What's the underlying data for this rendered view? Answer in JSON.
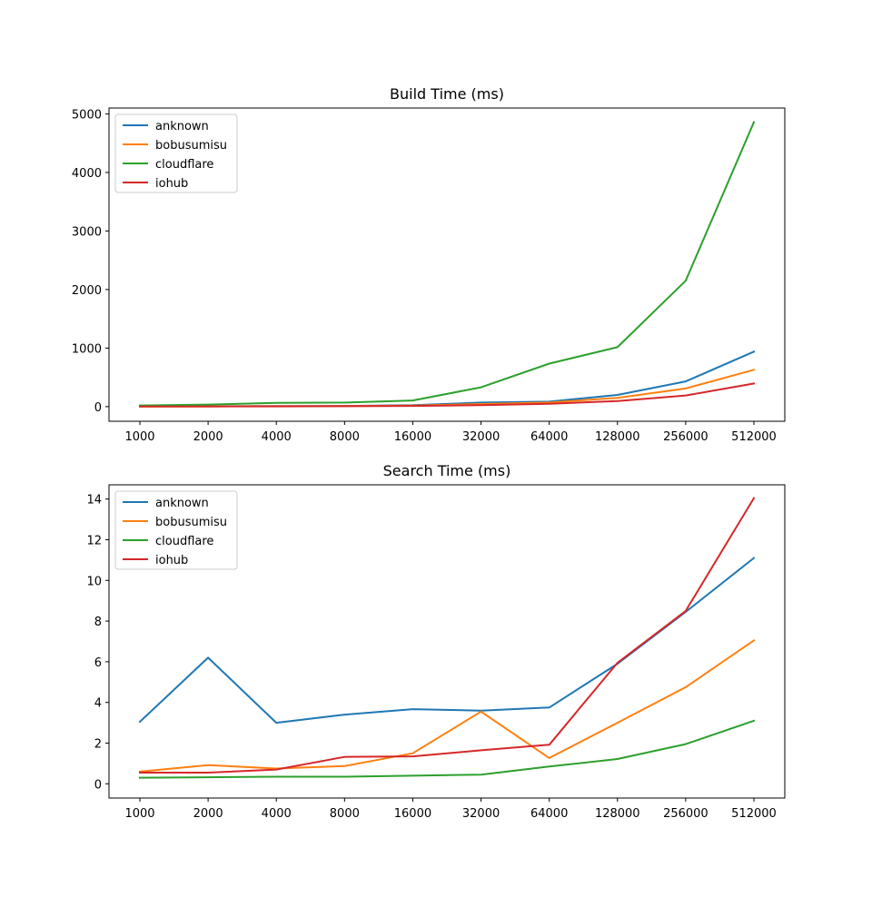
{
  "colors": {
    "anknown": "#1f77b4",
    "bobusumisu": "#ff7f0e",
    "cloudflare": "#2ca02c",
    "iohub": "#d62728"
  },
  "chart_data": [
    {
      "type": "line",
      "title": "Build Time (ms)",
      "xlabel": "",
      "ylabel": "",
      "categories": [
        "1000",
        "2000",
        "4000",
        "8000",
        "16000",
        "32000",
        "64000",
        "128000",
        "256000",
        "512000"
      ],
      "yticks": [
        0,
        1000,
        2000,
        3000,
        4000,
        5000
      ],
      "ylim": [
        -250,
        5100
      ],
      "legend": "top-left",
      "series": [
        {
          "name": "anknown",
          "values": [
            5,
            7,
            9,
            12,
            25,
            70,
            85,
            200,
            430,
            940
          ]
        },
        {
          "name": "bobusumisu",
          "values": [
            3,
            5,
            7,
            10,
            18,
            45,
            70,
            150,
            310,
            630
          ]
        },
        {
          "name": "cloudflare",
          "values": [
            20,
            35,
            65,
            70,
            105,
            330,
            735,
            1015,
            2150,
            4860
          ]
        },
        {
          "name": "iohub",
          "values": [
            2,
            3,
            5,
            8,
            12,
            25,
            50,
            95,
            190,
            395
          ]
        }
      ]
    },
    {
      "type": "line",
      "title": "Search Time (ms)",
      "xlabel": "",
      "ylabel": "",
      "categories": [
        "1000",
        "2000",
        "4000",
        "8000",
        "16000",
        "32000",
        "64000",
        "128000",
        "256000",
        "512000"
      ],
      "yticks": [
        0,
        2,
        4,
        6,
        8,
        10,
        12,
        14
      ],
      "ylim": [
        -0.7,
        14.7
      ],
      "legend": "top-left",
      "series": [
        {
          "name": "anknown",
          "values": [
            3.05,
            6.2,
            3.0,
            3.4,
            3.67,
            3.6,
            3.75,
            5.9,
            8.45,
            11.1
          ]
        },
        {
          "name": "bobusumisu",
          "values": [
            0.6,
            0.92,
            0.75,
            0.87,
            1.5,
            3.55,
            1.27,
            3.0,
            4.75,
            7.05
          ]
        },
        {
          "name": "cloudflare",
          "values": [
            0.3,
            0.32,
            0.35,
            0.35,
            0.4,
            0.45,
            0.85,
            1.22,
            1.95,
            3.1
          ]
        },
        {
          "name": "iohub",
          "values": [
            0.55,
            0.55,
            0.7,
            1.32,
            1.35,
            1.65,
            1.92,
            5.95,
            8.5,
            14.05
          ]
        }
      ]
    }
  ]
}
